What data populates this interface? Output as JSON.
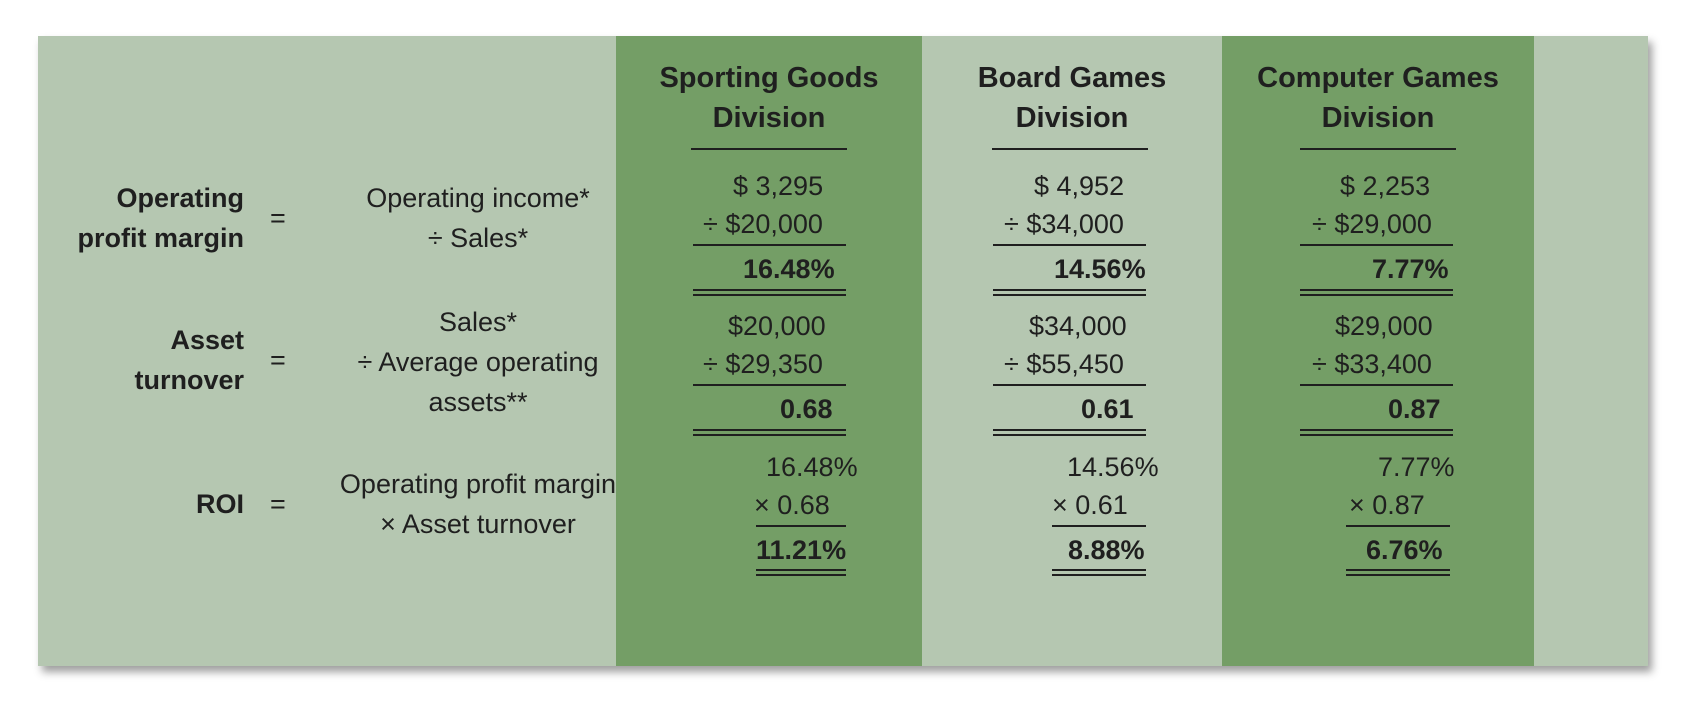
{
  "columns": [
    {
      "line1": "Sporting Goods",
      "line2": "Division"
    },
    {
      "line1": "Board Games",
      "line2": "Division"
    },
    {
      "line1": "Computer Games",
      "line2": "Division"
    }
  ],
  "rows": [
    {
      "label": [
        "Operating",
        "profit margin"
      ],
      "eq": "=",
      "formula": [
        "Operating income*",
        "÷ Sales*"
      ],
      "values": [
        {
          "top": "$  3,295",
          "mid": "÷ $20,000",
          "result": "16.48%"
        },
        {
          "top": "$  4,952",
          "mid": "÷ $34,000",
          "result": "14.56%"
        },
        {
          "top": "$  2,253",
          "mid": "÷ $29,000",
          "result": "7.77%"
        }
      ]
    },
    {
      "label": [
        "Asset",
        "turnover"
      ],
      "eq": "=",
      "formula": [
        "Sales*",
        "÷ Average operating",
        "assets**"
      ],
      "values": [
        {
          "top": "$20,000",
          "mid": "÷ $29,350",
          "result": "0.68"
        },
        {
          "top": "$34,000",
          "mid": "÷ $55,450",
          "result": "0.61"
        },
        {
          "top": "$29,000",
          "mid": "÷ $33,400",
          "result": "0.87"
        }
      ]
    },
    {
      "label": [
        "ROI"
      ],
      "eq": "=",
      "formula": [
        "Operating profit margin",
        "× Asset turnover"
      ],
      "values": [
        {
          "top": "16.48%",
          "mid": "× 0.68",
          "result": "11.21%"
        },
        {
          "top": "14.56%",
          "mid": "× 0.61",
          "result": "8.88%"
        },
        {
          "top": "7.77%",
          "mid": "× 0.87",
          "result": "6.76%"
        }
      ]
    }
  ],
  "colors": {
    "panel": "#b5c7b1",
    "accent_column": "#749e66",
    "text": "#1f1f1f"
  }
}
